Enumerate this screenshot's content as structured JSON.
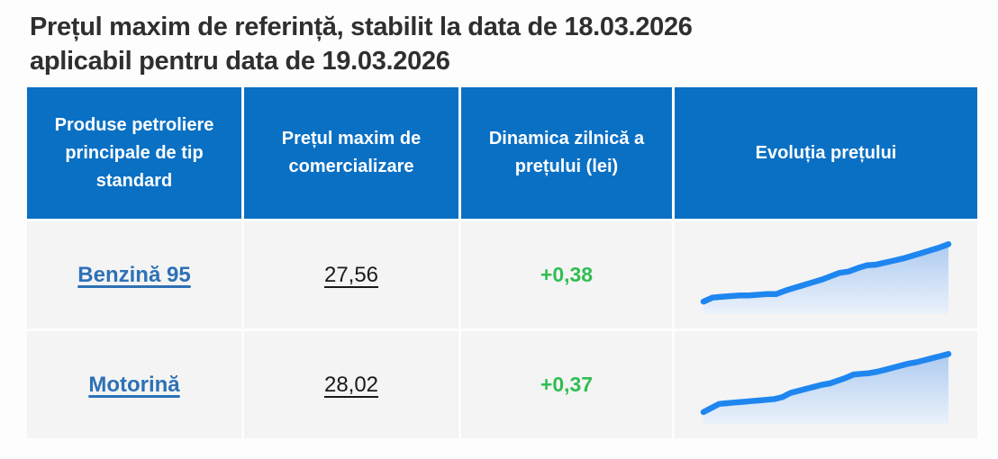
{
  "title": {
    "line1": "Prețul maxim de referință, stabilit la data de 18.03.2026",
    "line2": "aplicabil pentru data de 19.03.2026"
  },
  "table": {
    "headers": [
      "Produse petroliere principale de tip standard",
      "Prețul maxim de comercializare",
      "Dinamica zilnică a prețului (lei)",
      "Evoluția prețului"
    ],
    "rows": [
      {
        "product": "Benzină 95",
        "price": "27,56",
        "change": "+0,38",
        "sparkline": {
          "type": "line",
          "values": [
            13,
            19,
            20,
            21,
            22,
            22,
            23,
            24,
            24,
            29,
            33,
            37,
            41,
            45,
            50,
            55,
            57,
            62,
            66,
            67,
            70,
            73,
            76,
            80,
            84,
            88,
            92,
            97
          ]
        }
      },
      {
        "product": "Motorină",
        "price": "28,02",
        "change": "+0,37",
        "sparkline": {
          "type": "line",
          "values": [
            12,
            18,
            24,
            25,
            26,
            27,
            28,
            29,
            30,
            31,
            34,
            40,
            43,
            46,
            49,
            52,
            54,
            58,
            62,
            67,
            68,
            69,
            71,
            74,
            77,
            80,
            83,
            85,
            88,
            91,
            94,
            97
          ]
        }
      }
    ]
  },
  "colors": {
    "header_bg": "#0a70c4",
    "header_text": "#ffffff",
    "row_bg": "#f4f4f5",
    "title_text": "#2f2f2f",
    "link_blue": "#2d71b6",
    "price_text": "#1a1a1a",
    "positive_green": "#31be52",
    "spark_line": "#1f86ef",
    "spark_fill_top": "#a9c8f0",
    "spark_fill_bottom": "#e9f1fb"
  }
}
